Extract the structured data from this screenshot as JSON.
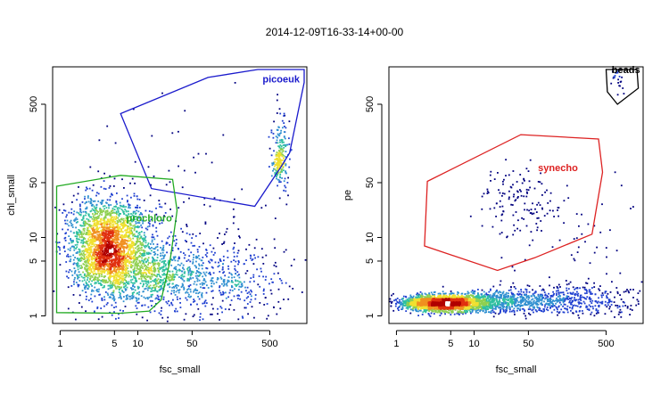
{
  "title": "2014-12-09T16-33-14+00-00",
  "chart_data": [
    {
      "type": "scatter",
      "scale": "log-log",
      "xlabel": "fsc_small",
      "ylabel": "chl_small",
      "xlim": [
        0.8,
        1500
      ],
      "ylim": [
        0.8,
        1500
      ],
      "x_ticks": [
        1,
        5,
        10,
        50,
        500
      ],
      "y_ticks": [
        1,
        5,
        10,
        50,
        500
      ],
      "x_tick_labels": [
        "1",
        "5",
        "10",
        "50",
        "500"
      ],
      "y_tick_labels": [
        "1",
        "5",
        "10",
        "50",
        "500"
      ],
      "density_colormap": [
        "#00007f",
        "#1f3fd0",
        "#2f8fd0",
        "#2fc0a0",
        "#8fd050",
        "#f0e030",
        "#f09020",
        "#e03010",
        "#b00000",
        "#ffffff"
      ],
      "clusters": [
        {
          "center": [
            4.2,
            7.5
          ],
          "spread": [
            0.5,
            0.62
          ],
          "count": 2600
        },
        {
          "center": [
            18,
            3.5
          ],
          "spread": [
            0.7,
            0.45
          ],
          "count": 700
        },
        {
          "center": [
            120,
            2.8
          ],
          "spread": [
            0.9,
            0.45
          ],
          "count": 380
        },
        {
          "center": [
            700,
            130
          ],
          "spread": [
            0.12,
            0.55
          ],
          "count": 170
        },
        {
          "center": [
            650,
            90
          ],
          "spread": [
            0.07,
            0.18
          ],
          "count": 70
        },
        {
          "center": [
            40,
            20
          ],
          "spread": [
            1.5,
            1.2
          ],
          "count": 110
        }
      ],
      "gates": [
        {
          "name": "picoeuk",
          "color": "#1a1acc",
          "label_at": [
            700,
            950
          ],
          "vertices": [
            [
              6,
              380
            ],
            [
              80,
              1100
            ],
            [
              350,
              1400
            ],
            [
              1100,
              1400
            ],
            [
              1400,
              1400
            ],
            [
              1400,
              950
            ],
            [
              900,
              120
            ],
            [
              700,
              80
            ],
            [
              320,
              25
            ],
            [
              15,
              42
            ]
          ]
        },
        {
          "name": "prochloro",
          "color": "#22aa22",
          "label_at": [
            14,
            16
          ],
          "vertices": [
            [
              0.9,
              45
            ],
            [
              6,
              62
            ],
            [
              28,
              55
            ],
            [
              32,
              22
            ],
            [
              26,
              5
            ],
            [
              20,
              1.6
            ],
            [
              14,
              1.15
            ],
            [
              6,
              1.08
            ],
            [
              0.9,
              1.1
            ]
          ]
        }
      ]
    },
    {
      "type": "scatter",
      "scale": "log-log",
      "xlabel": "fsc_small",
      "ylabel": "pe",
      "xlim": [
        0.8,
        1500
      ],
      "ylim": [
        0.8,
        1500
      ],
      "x_ticks": [
        1,
        5,
        10,
        50,
        500
      ],
      "y_ticks": [
        1,
        5,
        10,
        50,
        500
      ],
      "x_tick_labels": [
        "1",
        "5",
        "10",
        "50",
        "500"
      ],
      "y_tick_labels": [
        "1",
        "5",
        "10",
        "50",
        "500"
      ],
      "clusters": [
        {
          "center": [
            4,
            1.45
          ],
          "spread": [
            0.55,
            0.1
          ],
          "count": 2400
        },
        {
          "center": [
            20,
            1.5
          ],
          "spread": [
            0.7,
            0.14
          ],
          "count": 600
        },
        {
          "center": [
            150,
            1.6
          ],
          "spread": [
            0.95,
            0.2
          ],
          "count": 450
        },
        {
          "center": [
            40,
            30
          ],
          "spread": [
            0.5,
            0.45
          ],
          "count": 130
        },
        {
          "center": [
            700,
            1000
          ],
          "spread": [
            0.08,
            0.2
          ],
          "count": 25
        },
        {
          "center": [
            300,
            5
          ],
          "spread": [
            1.2,
            1.1
          ],
          "count": 90
        }
      ],
      "gates": [
        {
          "name": "synecho",
          "color": "#dd2222",
          "label_at": [
            120,
            70
          ],
          "vertices": [
            [
              2.5,
              52
            ],
            [
              40,
              205
            ],
            [
              400,
              180
            ],
            [
              450,
              68
            ],
            [
              330,
              11
            ],
            [
              60,
              5.5
            ],
            [
              20,
              3.8
            ],
            [
              2.3,
              7.8
            ]
          ]
        },
        {
          "name": "beads",
          "color": "#000000",
          "label_at": [
            900,
            1250
          ],
          "vertices": [
            [
              500,
              1900
            ],
            [
              900,
              2300
            ],
            [
              1250,
              1750
            ],
            [
              1300,
              800
            ],
            [
              700,
              500
            ],
            [
              520,
              720
            ]
          ]
        }
      ]
    }
  ]
}
